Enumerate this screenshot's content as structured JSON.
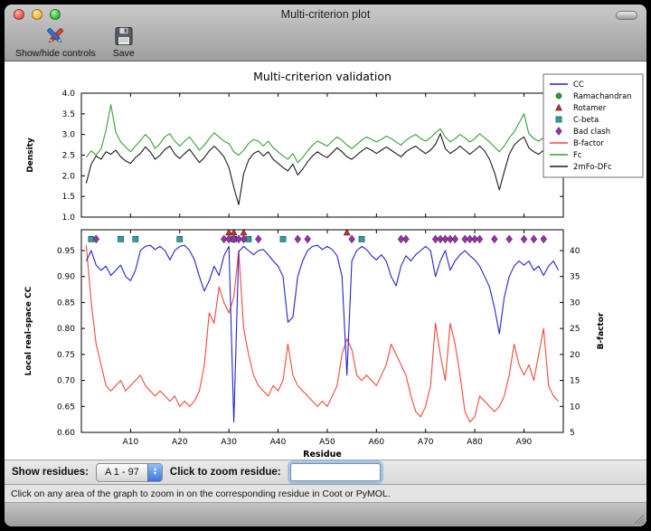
{
  "window": {
    "title": "Multi-criterion plot",
    "toolbar": {
      "buttons": [
        {
          "label": "Show/hide controls",
          "icon": "paint-tools-icon"
        },
        {
          "label": "Save",
          "icon": "save-icon"
        }
      ]
    }
  },
  "figure": {
    "title": "Multi-criterion validation",
    "top_plot": {
      "ylabel": "Density",
      "yticks": [
        "4.0",
        "3.5",
        "3.0",
        "2.5",
        "2.0",
        "1.5",
        "1.0"
      ]
    },
    "bottom_plot": {
      "ylabel_left": "Local real-space CC",
      "ylabel_right": "B-factor",
      "xlabel": "Residue",
      "yticks_left": [
        "0.95",
        "0.90",
        "0.85",
        "0.80",
        "0.75",
        "0.70",
        "0.65",
        "0.60"
      ],
      "yticks_right": [
        "40",
        "35",
        "30",
        "25",
        "20",
        "15",
        "10",
        "5"
      ],
      "xticks": [
        "A10",
        "A20",
        "A30",
        "A40",
        "A50",
        "A60",
        "A70",
        "A80",
        "A90"
      ]
    },
    "legend": [
      {
        "label": "CC",
        "marker": "line",
        "color": "#2323cc"
      },
      {
        "label": "Ramachandran",
        "marker": "circle",
        "color": "#22a02c"
      },
      {
        "label": "Rotamer",
        "marker": "triangle",
        "color": "#c82f2f"
      },
      {
        "label": "C-beta",
        "marker": "square",
        "color": "#25a2a2"
      },
      {
        "label": "Bad clash",
        "marker": "diamond",
        "color": "#9b30ae"
      },
      {
        "label": "B-factor",
        "marker": "line",
        "color": "#ef4837"
      },
      {
        "label": "Fc",
        "marker": "line",
        "color": "#35a135"
      },
      {
        "label": "2mFo-DFc",
        "marker": "line",
        "color": "#1a1a1a"
      }
    ]
  },
  "chart_data": [
    {
      "type": "line",
      "title": "Multi-criterion validation",
      "ylabel": "Density",
      "ylim": [
        1.0,
        4.0
      ],
      "x_range": [
        0,
        98
      ],
      "series": [
        {
          "name": "Fc",
          "color": "#35a135",
          "values": [
            2.45,
            2.6,
            2.5,
            2.65,
            3.1,
            3.72,
            3.05,
            2.82,
            2.7,
            2.58,
            2.72,
            2.85,
            3.0,
            2.88,
            2.66,
            2.78,
            2.95,
            3.02,
            2.84,
            2.72,
            2.84,
            2.94,
            2.78,
            2.62,
            2.74,
            2.9,
            3.04,
            2.94,
            2.84,
            2.78,
            2.58,
            2.5,
            2.62,
            2.78,
            2.88,
            2.84,
            2.72,
            2.84,
            2.68,
            2.58,
            2.48,
            2.4,
            2.54,
            2.32,
            2.44,
            2.6,
            2.74,
            2.84,
            2.78,
            2.72,
            2.84,
            2.94,
            2.86,
            2.74,
            2.66,
            2.76,
            2.86,
            2.94,
            2.88,
            2.82,
            2.88,
            2.96,
            2.9,
            2.82,
            2.74,
            2.86,
            2.94,
            3.0,
            2.9,
            2.84,
            2.92,
            3.04,
            3.14,
            2.94,
            2.82,
            2.9,
            3.0,
            2.92,
            2.82,
            2.9,
            3.02,
            2.92,
            2.82,
            2.7,
            2.58,
            2.72,
            2.92,
            3.06,
            3.28,
            3.5,
            3.02,
            2.9,
            2.84,
            2.92,
            3.04,
            2.96,
            2.88
          ]
        },
        {
          "name": "2mFo-DFc",
          "color": "#1a1a1a",
          "values": [
            1.82,
            2.28,
            2.48,
            2.4,
            2.58,
            2.52,
            2.62,
            2.46,
            2.36,
            2.3,
            2.44,
            2.54,
            2.7,
            2.58,
            2.4,
            2.5,
            2.64,
            2.72,
            2.52,
            2.42,
            2.54,
            2.64,
            2.48,
            2.32,
            2.44,
            2.6,
            2.72,
            2.6,
            2.46,
            2.2,
            1.72,
            1.3,
            2.05,
            2.38,
            2.54,
            2.6,
            2.48,
            2.58,
            2.4,
            2.3,
            2.2,
            2.12,
            2.28,
            2.02,
            2.16,
            2.34,
            2.48,
            2.58,
            2.5,
            2.44,
            2.56,
            2.68,
            2.58,
            2.46,
            2.4,
            2.5,
            2.6,
            2.68,
            2.62,
            2.54,
            2.62,
            2.7,
            2.62,
            2.54,
            2.46,
            2.58,
            2.66,
            2.72,
            2.62,
            2.54,
            2.62,
            2.76,
            3.02,
            2.66,
            2.54,
            2.62,
            2.72,
            2.62,
            2.52,
            2.62,
            2.72,
            2.6,
            2.4,
            2.08,
            1.66,
            2.1,
            2.52,
            2.74,
            2.86,
            2.94,
            2.68,
            2.58,
            2.52,
            2.62,
            2.72,
            2.8,
            2.88
          ]
        }
      ]
    },
    {
      "type": "line+scatter",
      "xlabel": "Residue",
      "ylabel_left": "Local real-space CC",
      "ylabel_right": "B-factor",
      "ylim_left": [
        0.6,
        0.99
      ],
      "ylim_right": [
        5,
        44
      ],
      "x_range": [
        0,
        98
      ],
      "series": [
        {
          "name": "CC",
          "axis": "left",
          "color": "#2323cc",
          "values": [
            0.93,
            0.95,
            0.922,
            0.912,
            0.92,
            0.902,
            0.912,
            0.922,
            0.9,
            0.892,
            0.912,
            0.95,
            0.958,
            0.96,
            0.952,
            0.958,
            0.95,
            0.932,
            0.95,
            0.958,
            0.96,
            0.95,
            0.932,
            0.9,
            0.872,
            0.892,
            0.92,
            0.902,
            0.94,
            0.958,
            0.62,
            0.948,
            0.958,
            0.95,
            0.942,
            0.95,
            0.952,
            0.942,
            0.93,
            0.92,
            0.9,
            0.812,
            0.822,
            0.9,
            0.93,
            0.95,
            0.958,
            0.96,
            0.952,
            0.958,
            0.952,
            0.94,
            0.9,
            0.71,
            0.93,
            0.95,
            0.958,
            0.952,
            0.94,
            0.932,
            0.942,
            0.93,
            0.9,
            0.882,
            0.92,
            0.94,
            0.93,
            0.942,
            0.95,
            0.958,
            0.95,
            0.9,
            0.93,
            0.95,
            0.912,
            0.93,
            0.942,
            0.95,
            0.94,
            0.932,
            0.92,
            0.9,
            0.88,
            0.84,
            0.79,
            0.86,
            0.9,
            0.92,
            0.93,
            0.922,
            0.93,
            0.912,
            0.92,
            0.902,
            0.92,
            0.93,
            0.912
          ]
        },
        {
          "name": "B-factor",
          "axis": "right",
          "color": "#ef4837",
          "values": [
            41,
            30,
            22,
            18,
            14,
            13,
            14,
            15,
            13,
            14,
            15,
            16,
            14,
            13,
            12,
            13,
            12,
            11,
            12,
            10,
            11,
            10,
            11,
            13,
            18,
            28,
            26,
            33,
            30,
            28,
            31,
            40,
            25,
            20,
            16,
            14,
            13,
            12,
            14,
            13,
            15,
            22,
            16,
            14,
            13,
            12,
            11,
            10,
            11,
            10,
            12,
            14,
            20,
            23,
            21,
            16,
            15,
            16,
            15,
            14,
            16,
            18,
            22,
            20,
            18,
            16,
            12,
            9,
            8,
            10,
            14,
            26,
            20,
            15,
            26,
            22,
            16,
            9,
            7,
            8,
            12,
            11,
            10,
            9,
            10,
            12,
            16,
            22,
            18,
            16,
            18,
            15,
            20,
            25,
            14,
            12,
            11
          ]
        }
      ],
      "markers": [
        {
          "name": "Rotamer",
          "shape": "triangle",
          "color": "#c82f2f",
          "y": 0.985,
          "residues": [
            30,
            31,
            33,
            54
          ]
        },
        {
          "name": "C-beta",
          "shape": "square",
          "color": "#25a2a2",
          "y": 0.972,
          "residues": [
            2,
            8,
            11,
            20,
            31,
            34,
            41,
            57
          ]
        },
        {
          "name": "Bad clash",
          "shape": "diamond",
          "color": "#9b30ae",
          "y": 0.972,
          "residues": [
            3,
            29,
            30,
            31,
            32,
            33,
            36,
            44,
            46,
            55,
            65,
            66,
            72,
            73,
            74,
            75,
            76,
            78,
            79,
            80,
            81,
            84,
            87,
            90,
            92,
            94
          ]
        }
      ]
    }
  ],
  "controls": {
    "show_residues_label": "Show residues:",
    "chain_range_value": "A  1 - 97",
    "zoom_label": "Click to zoom residue:",
    "zoom_value": ""
  },
  "status_bar": {
    "text": "Click on any area of the graph to zoom in on the corresponding residue in Coot or PyMOL."
  }
}
